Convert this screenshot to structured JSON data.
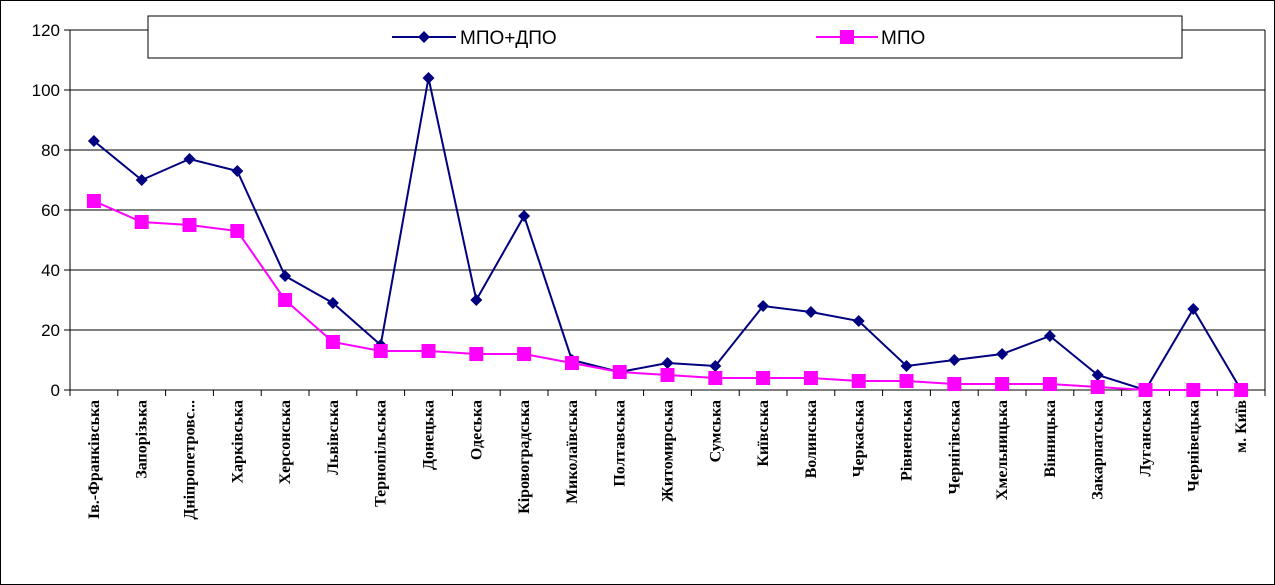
{
  "chart_data": {
    "type": "line",
    "categories": [
      "Ів.-Франківська",
      "Запорізька",
      "Дніпропетровс...",
      "Харківська",
      "Херсонська",
      "Львівська",
      "Тернопільська",
      "Донецька",
      "Одеська",
      "Кіровоградська",
      "Миколаївська",
      "Полтавська",
      "Житомирська",
      "Сумська",
      "Київська",
      "Волинська",
      "Черкаська",
      "Рівненська",
      "Чернігівська",
      "Хмельницька",
      "Вінницька",
      "Закарпатська",
      "Луганська",
      "Чернівецька",
      "м. Київ"
    ],
    "series": [
      {
        "name": "МПО+ДПО",
        "color": "#000080",
        "marker": "diamond",
        "values": [
          83,
          70,
          77,
          73,
          38,
          29,
          15,
          104,
          30,
          58,
          10,
          6,
          9,
          8,
          28,
          26,
          23,
          8,
          10,
          12,
          18,
          5,
          0,
          27,
          0
        ]
      },
      {
        "name": "МПО",
        "color": "#FF00FF",
        "marker": "square",
        "values": [
          63,
          56,
          55,
          53,
          30,
          16,
          13,
          13,
          12,
          12,
          9,
          6,
          5,
          4,
          4,
          4,
          3,
          3,
          2,
          2,
          2,
          1,
          0,
          0,
          0
        ]
      }
    ],
    "ylim": [
      0,
      120
    ],
    "yticks": [
      "0",
      "20",
      "40",
      "60",
      "80",
      "100",
      "120"
    ],
    "grid": true,
    "legend": "top"
  }
}
